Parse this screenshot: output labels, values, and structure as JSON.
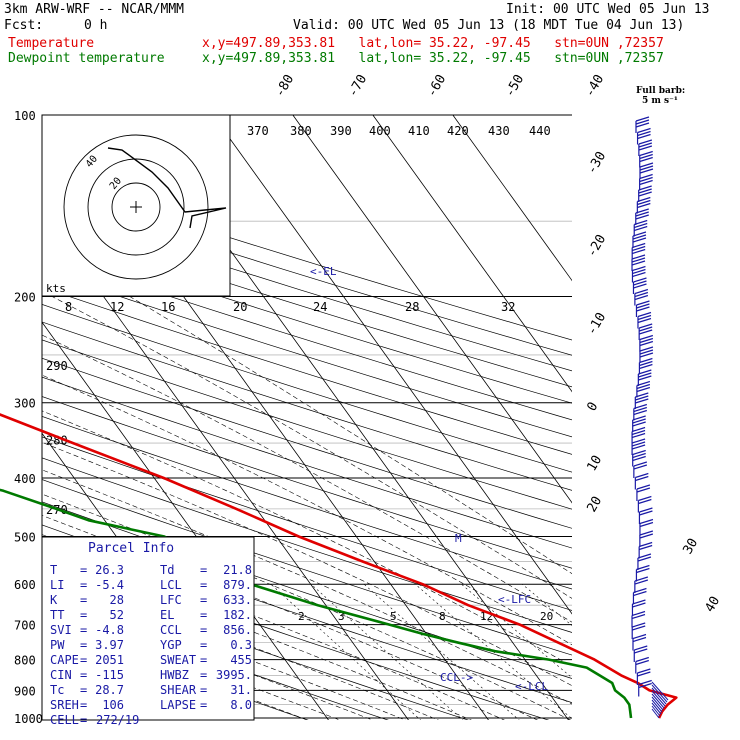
{
  "header": {
    "model": "3km ARW-WRF -- NCAR/MMM",
    "init": "Init: 00 UTC Wed 05 Jun 13",
    "fcst_label": "Fcst:",
    "fcst_value": "0 h",
    "valid": "Valid: 00 UTC Wed 05 Jun 13 (18 MDT Tue 04 Jun 13)",
    "temp_label": "Temperature",
    "dew_label": "Dewpoint temperature",
    "temp_info": "x,y=497.89,353.81   lat,lon= 35.22, -97.45   stn=0UN ,72357",
    "dew_info": "x,y=497.89,353.81   lat,lon= 35.22, -97.45   stn=0UN ,72357",
    "barb_legend_1": "Full barb:",
    "barb_legend_2": "5 m s⁻¹"
  },
  "colors": {
    "temperature": "#e00000",
    "dewpoint": "#007a00",
    "annotation": "#1a1aa6"
  },
  "chart_data": {
    "type": "line",
    "subtype": "skew-T log-P diagram",
    "pressure_levels": [
      100,
      200,
      300,
      400,
      500,
      600,
      700,
      800,
      900,
      1000
    ],
    "isotherm_labels": [
      -80,
      -70,
      -60,
      -50,
      -40,
      -30,
      -20,
      -10,
      0,
      10,
      20,
      30,
      40
    ],
    "theta_labels": [
      370,
      380,
      390,
      400,
      410,
      420,
      430,
      440
    ],
    "mixing_ratio_labels": [
      2,
      3,
      5,
      8,
      12,
      20
    ],
    "theta_e_labels_upper": [
      8,
      12,
      16,
      20,
      24,
      28,
      32
    ],
    "left_labels": [
      {
        "p": 260,
        "text": "290"
      },
      {
        "p": 345,
        "text": "280"
      },
      {
        "p": 450,
        "text": "270"
      }
    ],
    "series": [
      {
        "name": "Temperature",
        "points": [
          [
            1000,
            21.5
          ],
          [
            975,
            22.5
          ],
          [
            950,
            23.8
          ],
          [
            925,
            25.5
          ],
          [
            900,
            22.8
          ],
          [
            875,
            22.0
          ],
          [
            850,
            20.6
          ],
          [
            800,
            18.7
          ],
          [
            750,
            15.7
          ],
          [
            700,
            12.5
          ],
          [
            650,
            7.8
          ],
          [
            600,
            4.0
          ],
          [
            550,
            -1.5
          ],
          [
            500,
            -7.2
          ],
          [
            450,
            -12.5
          ],
          [
            400,
            -18.8
          ],
          [
            350,
            -27.0
          ],
          [
            300,
            -36.3
          ],
          [
            250,
            -46.2
          ],
          [
            200,
            -56.0
          ],
          [
            175,
            -59.5
          ],
          [
            150,
            -62.0
          ],
          [
            125,
            -64.5
          ],
          [
            100,
            -70.0
          ]
        ]
      },
      {
        "name": "Dewpoint temperature",
        "points": [
          [
            1000,
            18.0
          ],
          [
            975,
            18.5
          ],
          [
            950,
            19.0
          ],
          [
            925,
            19.0
          ],
          [
            900,
            18.5
          ],
          [
            875,
            18.8
          ],
          [
            850,
            17.9
          ],
          [
            825,
            17.0
          ],
          [
            800,
            13.0
          ],
          [
            775,
            7.0
          ],
          [
            750,
            3.2
          ],
          [
            725,
            -0.5
          ],
          [
            700,
            -3.8
          ],
          [
            650,
            -11.0
          ],
          [
            600,
            -17.5
          ],
          [
            550,
            -20.5
          ],
          [
            500,
            -24.0
          ],
          [
            470,
            -32.0
          ],
          [
            450,
            -35.0
          ],
          [
            420,
            -40.0
          ],
          [
            400,
            -45.0
          ],
          [
            375,
            -50.0
          ],
          [
            350,
            -51.0
          ],
          [
            300,
            -56.0
          ],
          [
            250,
            -65.0
          ],
          [
            200,
            -75.0
          ],
          [
            175,
            -80.0
          ],
          [
            150,
            -81.0
          ],
          [
            120,
            -83.0
          ],
          [
            100,
            -86.0
          ]
        ]
      }
    ],
    "annotations": [
      {
        "text": "<-EL",
        "p": 182
      },
      {
        "text": "<-LFC",
        "p": 633
      },
      {
        "text": "<-LCL",
        "p": 879
      },
      {
        "text": "CCL->",
        "p": 856
      },
      {
        "text": "M",
        "p": 500
      }
    ],
    "hodograph": {
      "label": "kts",
      "ring_labels": [
        "40",
        "20"
      ],
      "track": [
        [
          0,
          0
        ],
        [
          18,
          -8
        ],
        [
          35,
          -14
        ],
        [
          48,
          -18
        ],
        [
          56,
          -16
        ],
        [
          58,
          -4
        ],
        [
          55,
          10
        ],
        [
          54,
          16
        ],
        [
          50,
          10
        ]
      ]
    }
  },
  "parcel_info": {
    "title": "Parcel Info",
    "rows": [
      [
        "T",
        "=",
        "26.3",
        "Td",
        "=",
        "21.8"
      ],
      [
        "LI",
        "=",
        "-5.4",
        "LCL",
        "=",
        "879."
      ],
      [
        "K",
        "=",
        "28",
        "LFC",
        "=",
        "633."
      ],
      [
        "TT",
        "=",
        "52",
        "EL",
        "=",
        "182."
      ],
      [
        "SVI",
        "=",
        "-4.8",
        "CCL",
        "=",
        "856."
      ],
      [
        "PW",
        "=",
        "3.97",
        "YGP",
        "=",
        "0.3"
      ],
      [
        "CAPE",
        "=",
        "2051",
        "SWEAT",
        "=",
        "455"
      ],
      [
        "CIN",
        "=",
        "-115",
        "HWBZ",
        "=",
        "3995."
      ],
      [
        "Tc",
        "=",
        "28.7",
        "SHEAR",
        "=",
        "31."
      ],
      [
        "SREH",
        "=",
        "106",
        "LAPSE",
        "=",
        "8.0"
      ],
      [
        "CELL",
        "=",
        "272/19",
        "",
        "",
        ""
      ]
    ]
  }
}
